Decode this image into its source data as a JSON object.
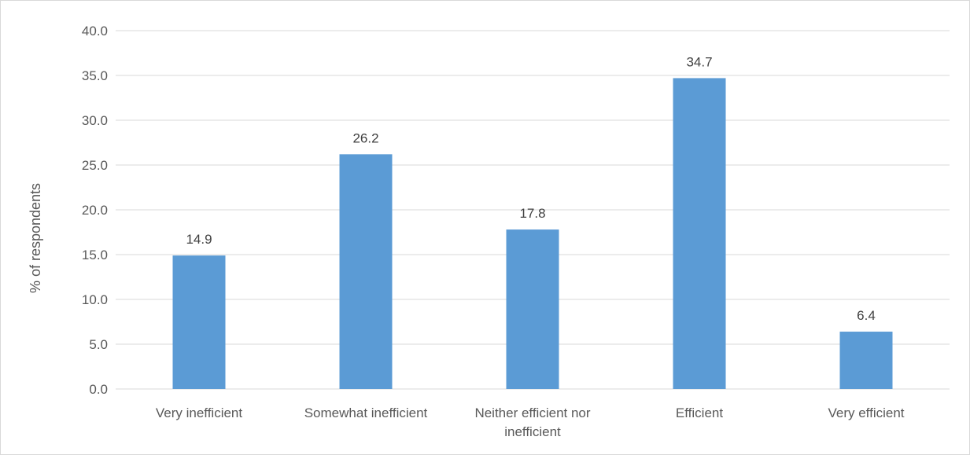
{
  "chart_data": {
    "type": "bar",
    "title": "",
    "xlabel": "",
    "ylabel": "% of respondents",
    "categories": [
      [
        "Very inefficient"
      ],
      [
        "Somewhat inefficient"
      ],
      [
        "Neither efficient nor",
        "inefficient"
      ],
      [
        "Efficient"
      ],
      [
        "Very efficient"
      ]
    ],
    "values": [
      14.9,
      26.2,
      17.8,
      34.7,
      6.4
    ],
    "data_labels": [
      "14.9",
      "26.2",
      "17.8",
      "34.7",
      "6.4"
    ],
    "ylim": [
      0,
      40
    ],
    "yticks": [
      "0.0",
      "5.0",
      "10.0",
      "15.0",
      "20.0",
      "25.0",
      "30.0",
      "35.0",
      "40.0"
    ],
    "grid": true,
    "legend": "none",
    "colors": {
      "bar": "#5b9bd5",
      "grid": "#d9d9d9",
      "axis": "#d9d9d9"
    }
  }
}
